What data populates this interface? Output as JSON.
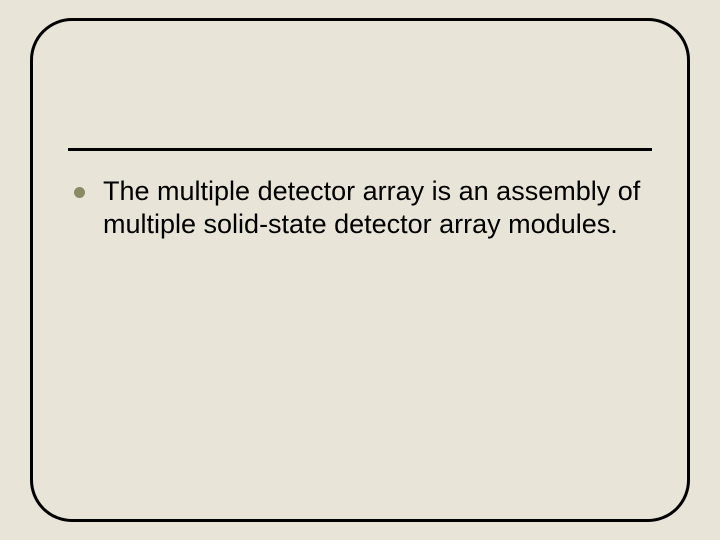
{
  "slide": {
    "background_color": "#e8e4d8",
    "frame": {
      "border_color": "#000000",
      "border_width": 3,
      "border_radius": 42
    },
    "divider": {
      "color": "#000000",
      "height": 3
    },
    "bullet": {
      "dot_color": "#8a8a65",
      "dot_size": 11,
      "text": "The multiple detector array is an assembly of multiple solid-state detector array modules.",
      "text_color": "#000000",
      "font_size": 27,
      "font_family": "Arial"
    }
  }
}
